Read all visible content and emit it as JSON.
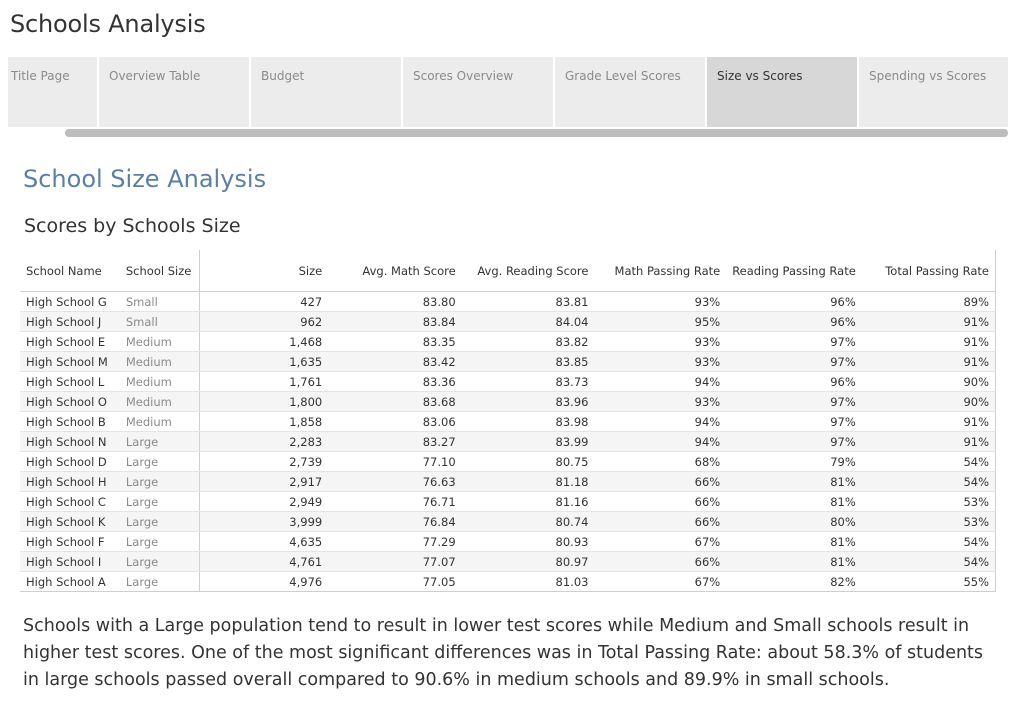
{
  "app": {
    "title": "Schools Analysis"
  },
  "tabs": [
    {
      "label": "Title Page",
      "active": false
    },
    {
      "label": "Overview Table",
      "active": false
    },
    {
      "label": "Budget",
      "active": false
    },
    {
      "label": "Scores Overview",
      "active": false
    },
    {
      "label": "Grade Level Scores",
      "active": false
    },
    {
      "label": "Size vs Scores",
      "active": true
    },
    {
      "label": "Spending vs Scores",
      "active": false
    }
  ],
  "section": {
    "title": "School Size Analysis"
  },
  "table": {
    "title": "Scores by Schools Size",
    "headers": [
      "School Name",
      "School Size",
      "Size",
      "Avg. Math Score",
      "Avg. Reading Score",
      "Math Passing Rate",
      "Reading Passing Rate",
      "Total Passing Rate"
    ],
    "rows": [
      [
        "High School G",
        "Small",
        "427",
        "83.80",
        "83.81",
        "93%",
        "96%",
        "89%"
      ],
      [
        "High School J",
        "Small",
        "962",
        "83.84",
        "84.04",
        "95%",
        "96%",
        "91%"
      ],
      [
        "High School E",
        "Medium",
        "1,468",
        "83.35",
        "83.82",
        "93%",
        "97%",
        "91%"
      ],
      [
        "High School M",
        "Medium",
        "1,635",
        "83.42",
        "83.85",
        "93%",
        "97%",
        "91%"
      ],
      [
        "High School L",
        "Medium",
        "1,761",
        "83.36",
        "83.73",
        "94%",
        "96%",
        "90%"
      ],
      [
        "High School O",
        "Medium",
        "1,800",
        "83.68",
        "83.96",
        "93%",
        "97%",
        "90%"
      ],
      [
        "High School B",
        "Medium",
        "1,858",
        "83.06",
        "83.98",
        "94%",
        "97%",
        "91%"
      ],
      [
        "High School N",
        "Large",
        "2,283",
        "83.27",
        "83.99",
        "94%",
        "97%",
        "91%"
      ],
      [
        "High School D",
        "Large",
        "2,739",
        "77.10",
        "80.75",
        "68%",
        "79%",
        "54%"
      ],
      [
        "High School H",
        "Large",
        "2,917",
        "76.63",
        "81.18",
        "66%",
        "81%",
        "54%"
      ],
      [
        "High School C",
        "Large",
        "2,949",
        "76.71",
        "81.16",
        "66%",
        "81%",
        "53%"
      ],
      [
        "High School K",
        "Large",
        "3,999",
        "76.84",
        "80.74",
        "66%",
        "80%",
        "53%"
      ],
      [
        "High School F",
        "Large",
        "4,635",
        "77.29",
        "80.93",
        "67%",
        "81%",
        "54%"
      ],
      [
        "High School I",
        "Large",
        "4,761",
        "77.07",
        "80.97",
        "66%",
        "81%",
        "54%"
      ],
      [
        "High School A",
        "Large",
        "4,976",
        "77.05",
        "81.03",
        "67%",
        "82%",
        "55%"
      ]
    ]
  },
  "summary": {
    "text": "Schools with a Large population tend to result in lower test scores while Medium and Small schools result in higher test scores. One of the most significant differences was in Total Passing Rate: about 58.3% of students in large schools passed overall compared to 90.6% in medium schools and 89.9% in small schools."
  },
  "colors": {
    "accent": "#5b7fa6",
    "tab_bg": "#ececec",
    "tab_active_bg": "#d7d7d7",
    "muted_text": "#8a8a8a"
  }
}
